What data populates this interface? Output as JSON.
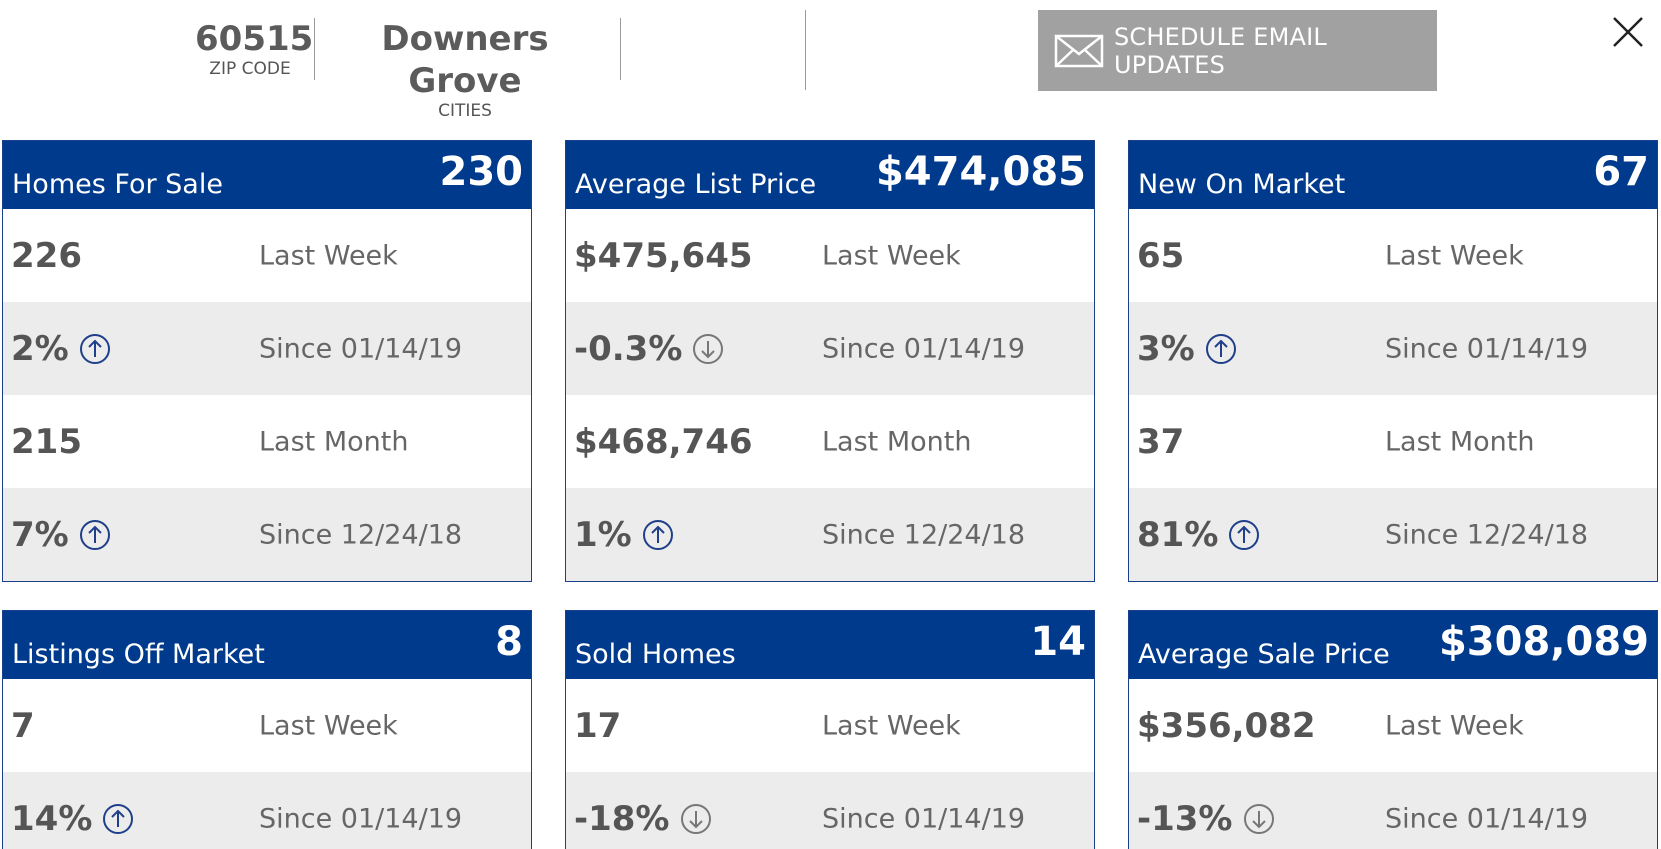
{
  "header": {
    "zip": {
      "value": "60515",
      "label": "ZIP CODE"
    },
    "city": {
      "value": "Downers Grove",
      "label": "CITIES"
    },
    "email_button": {
      "label": "SCHEDULE EMAIL UPDATES",
      "icon": "envelope-icon"
    },
    "close_icon": "close-icon"
  },
  "colors": {
    "header_blue": "#003a8c",
    "button_gray": "#a1a1a1",
    "arrow_up": "#1f3f8a",
    "arrow_down": "#777777"
  },
  "cards": [
    {
      "title": "Homes For Sale",
      "total": "230",
      "rows": [
        {
          "value": "226",
          "label": "Last Week"
        },
        {
          "value": "2%",
          "arrow": "up",
          "label": "Since 01/14/19"
        },
        {
          "value": "215",
          "label": "Last Month"
        },
        {
          "value": "7%",
          "arrow": "up",
          "label": "Since 12/24/18"
        }
      ]
    },
    {
      "title": "Average List Price",
      "total": "$474,085",
      "rows": [
        {
          "value": "$475,645",
          "label": "Last Week"
        },
        {
          "value": "-0.3%",
          "arrow": "down",
          "label": "Since 01/14/19"
        },
        {
          "value": "$468,746",
          "label": "Last Month"
        },
        {
          "value": "1%",
          "arrow": "up",
          "label": "Since 12/24/18"
        }
      ]
    },
    {
      "title": "New On Market",
      "total": "67",
      "rows": [
        {
          "value": "65",
          "label": "Last Week"
        },
        {
          "value": "3%",
          "arrow": "up",
          "label": "Since 01/14/19"
        },
        {
          "value": "37",
          "label": "Last Month"
        },
        {
          "value": "81%",
          "arrow": "up",
          "label": "Since 12/24/18"
        }
      ]
    },
    {
      "title": "Listings Off Market",
      "total": "8",
      "rows": [
        {
          "value": "7",
          "label": "Last Week"
        },
        {
          "value": "14%",
          "arrow": "up",
          "label": "Since 01/14/19"
        }
      ]
    },
    {
      "title": "Sold Homes",
      "total": "14",
      "rows": [
        {
          "value": "17",
          "label": "Last Week"
        },
        {
          "value": "-18%",
          "arrow": "down",
          "label": "Since 01/14/19"
        }
      ]
    },
    {
      "title": "Average Sale Price",
      "total": "$308,089",
      "rows": [
        {
          "value": "$356,082",
          "label": "Last Week"
        },
        {
          "value": "-13%",
          "arrow": "down",
          "label": "Since 01/14/19"
        }
      ]
    }
  ]
}
